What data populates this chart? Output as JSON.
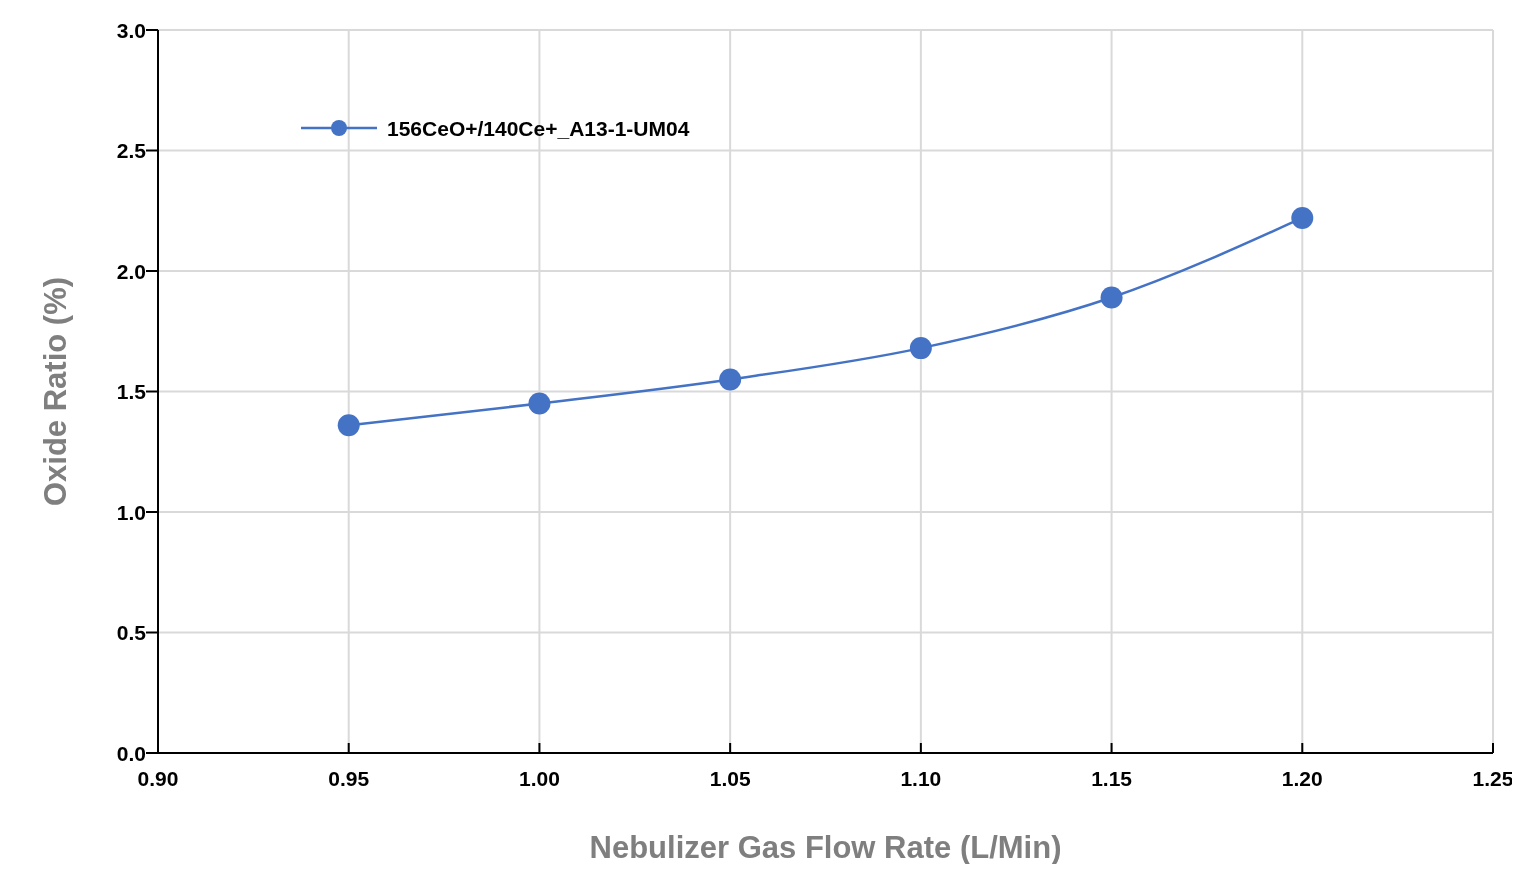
{
  "chart_data": {
    "type": "line",
    "xlabel": "Nebulizer Gas Flow Rate (L/Min)",
    "ylabel": "Oxide Ratio (%)",
    "x": [
      0.95,
      1.0,
      1.05,
      1.1,
      1.15,
      1.2
    ],
    "series": [
      {
        "name": "156CeO+/140Ce+_A13-1-UM04",
        "color": "#4472c4",
        "values": [
          1.36,
          1.45,
          1.55,
          1.68,
          1.89,
          2.22
        ]
      }
    ],
    "xlim": [
      0.9,
      1.25
    ],
    "xticks": [
      {
        "value": 0.9,
        "label": "0.90"
      },
      {
        "value": 0.95,
        "label": "0.95"
      },
      {
        "value": 1.0,
        "label": "1.00"
      },
      {
        "value": 1.05,
        "label": "1.05"
      },
      {
        "value": 1.1,
        "label": "1.10"
      },
      {
        "value": 1.15,
        "label": "1.15"
      },
      {
        "value": 1.2,
        "label": "1.20"
      },
      {
        "value": 1.25,
        "label": "1.25"
      }
    ],
    "ylim": [
      0,
      3
    ],
    "yticks": [
      {
        "value": 0,
        "label": "0.0"
      },
      {
        "value": 0.5,
        "label": "0.5"
      },
      {
        "value": 1,
        "label": "1.0"
      },
      {
        "value": 1.5,
        "label": "1.5"
      },
      {
        "value": 2,
        "label": "2.0"
      },
      {
        "value": 2.5,
        "label": "2.5"
      },
      {
        "value": 3,
        "label": "3.0"
      }
    ],
    "grid": true,
    "legend": "top left",
    "marker": "circle",
    "line_style": "solid"
  }
}
